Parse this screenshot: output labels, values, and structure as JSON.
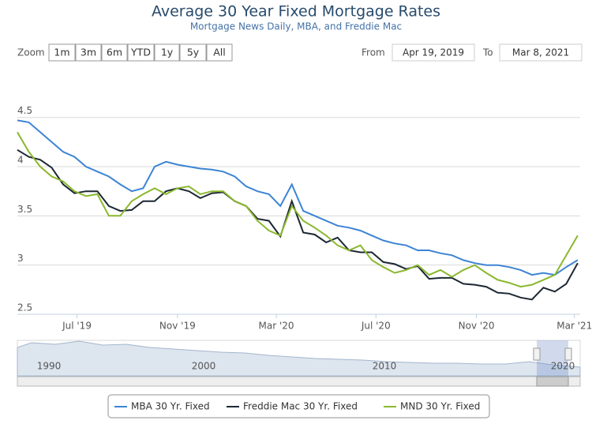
{
  "range_selector": {
    "zoom_label": "Zoom",
    "buttons": [
      "1m",
      "3m",
      "6m",
      "YTD",
      "1y",
      "5y",
      "All"
    ]
  },
  "date_inputs": {
    "from_label": "From",
    "from": "Apr 19, 2019",
    "to_label": "To",
    "to": "Mar 8, 2021"
  },
  "navigator": {
    "labels": [
      "1990",
      "2000",
      "2010",
      "2020"
    ]
  },
  "chart_data": {
    "type": "line",
    "title": "Average 30 Year Fixed Mortgage Rates",
    "subtitle": "Mortgage News Daily, MBA, and Freddie Mac",
    "x": [
      "2019-04-19",
      "2019-05-03",
      "2019-05-17",
      "2019-05-31",
      "2019-06-14",
      "2019-06-28",
      "2019-07-12",
      "2019-07-26",
      "2019-08-09",
      "2019-08-23",
      "2019-09-06",
      "2019-09-20",
      "2019-10-04",
      "2019-10-18",
      "2019-11-01",
      "2019-11-15",
      "2019-11-29",
      "2019-12-13",
      "2019-12-27",
      "2020-01-10",
      "2020-01-24",
      "2020-02-07",
      "2020-02-21",
      "2020-03-06",
      "2020-03-20",
      "2020-04-03",
      "2020-04-17",
      "2020-05-01",
      "2020-05-15",
      "2020-05-29",
      "2020-06-12",
      "2020-06-26",
      "2020-07-10",
      "2020-07-24",
      "2020-08-07",
      "2020-08-21",
      "2020-09-04",
      "2020-09-18",
      "2020-10-02",
      "2020-10-16",
      "2020-10-30",
      "2020-11-13",
      "2020-11-27",
      "2020-12-11",
      "2020-12-25",
      "2021-01-08",
      "2021-01-22",
      "2021-02-05",
      "2021-02-19",
      "2021-03-05"
    ],
    "series": [
      {
        "name": "MBA 30 Yr. Fixed",
        "color": "#3c84d4",
        "values": [
          4.47,
          4.45,
          4.35,
          4.25,
          4.15,
          4.1,
          4.0,
          3.95,
          3.9,
          3.82,
          3.75,
          3.78,
          4.0,
          4.05,
          4.02,
          4.0,
          3.98,
          3.97,
          3.95,
          3.9,
          3.8,
          3.75,
          3.72,
          3.6,
          3.82,
          3.55,
          3.5,
          3.45,
          3.4,
          3.38,
          3.35,
          3.3,
          3.25,
          3.22,
          3.2,
          3.15,
          3.15,
          3.12,
          3.1,
          3.05,
          3.02,
          3.0,
          3.0,
          2.98,
          2.95,
          2.9,
          2.92,
          2.9,
          2.98,
          3.05
        ]
      },
      {
        "name": "Freddie Mac 30 Yr. Fixed",
        "color": "#1c2733",
        "values": [
          4.17,
          4.1,
          4.07,
          3.99,
          3.82,
          3.73,
          3.75,
          3.75,
          3.6,
          3.55,
          3.56,
          3.65,
          3.65,
          3.75,
          3.78,
          3.75,
          3.68,
          3.73,
          3.74,
          3.65,
          3.6,
          3.47,
          3.45,
          3.29,
          3.65,
          3.33,
          3.31,
          3.23,
          3.28,
          3.15,
          3.13,
          3.13,
          3.03,
          3.01,
          2.96,
          2.99,
          2.86,
          2.87,
          2.87,
          2.81,
          2.8,
          2.78,
          2.72,
          2.71,
          2.67,
          2.65,
          2.77,
          2.73,
          2.81,
          3.02
        ]
      },
      {
        "name": "MND 30 Yr. Fixed",
        "color": "#8ab82e",
        "values": [
          4.35,
          4.15,
          4.0,
          3.9,
          3.85,
          3.75,
          3.7,
          3.72,
          3.5,
          3.5,
          3.65,
          3.72,
          3.78,
          3.72,
          3.78,
          3.8,
          3.72,
          3.75,
          3.75,
          3.65,
          3.6,
          3.45,
          3.35,
          3.3,
          3.6,
          3.45,
          3.38,
          3.3,
          3.2,
          3.15,
          3.2,
          3.05,
          2.98,
          2.92,
          2.95,
          3.0,
          2.9,
          2.95,
          2.88,
          2.95,
          3.0,
          2.92,
          2.85,
          2.82,
          2.78,
          2.8,
          2.85,
          2.9,
          3.1,
          3.3
        ]
      }
    ],
    "xlim": [
      "2019-04-19",
      "2021-03-08"
    ],
    "xticks": [
      {
        "value": "2019-07-01",
        "label": "Jul '19"
      },
      {
        "value": "2019-11-01",
        "label": "Nov '19"
      },
      {
        "value": "2020-03-01",
        "label": "Mar '20"
      },
      {
        "value": "2020-07-01",
        "label": "Jul '20"
      },
      {
        "value": "2020-11-01",
        "label": "Nov '20"
      },
      {
        "value": "2021-03-01",
        "label": "Mar '21"
      }
    ],
    "ylim": [
      2.5,
      4.65
    ],
    "yticks": [
      2.5,
      3,
      3.5,
      4,
      4.5
    ],
    "grid": true
  }
}
